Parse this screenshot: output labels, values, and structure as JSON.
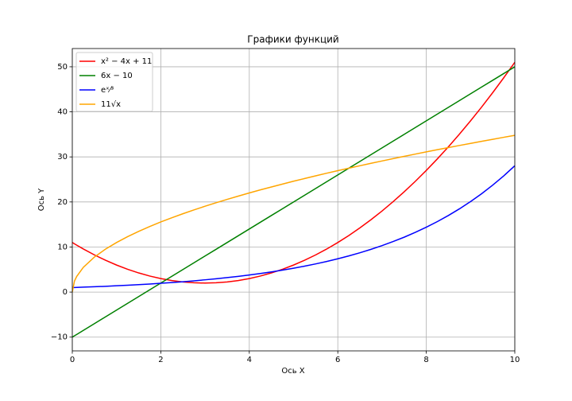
{
  "chart_data": {
    "type": "line",
    "title": "Графики функций",
    "x_label": "Ось X",
    "y_label": "Ось Y",
    "x": [
      0,
      0.05,
      0.1,
      0.25,
      0.5,
      0.75,
      1,
      1.25,
      1.5,
      1.75,
      2,
      2.25,
      2.5,
      2.75,
      3,
      3.25,
      3.5,
      3.75,
      4,
      4.25,
      4.5,
      4.75,
      5,
      5.25,
      5.5,
      5.75,
      6,
      6.25,
      6.5,
      6.75,
      7,
      7.25,
      7.5,
      7.75,
      8,
      8.25,
      8.5,
      8.75,
      9,
      9.25,
      9.5,
      9.75,
      10
    ],
    "series": [
      {
        "name": "x² − 4x + 11",
        "color": "#ff0000",
        "values": [
          11,
          10.7,
          10.41,
          9.56,
          8.25,
          7.06,
          6,
          5.06,
          4.25,
          3.56,
          3,
          2.56,
          2.25,
          2.06,
          2,
          2.06,
          2.25,
          2.56,
          3,
          3.56,
          4.25,
          5.06,
          6,
          7.06,
          8.25,
          9.56,
          11,
          12.56,
          14.25,
          16.06,
          18,
          20.06,
          22.25,
          24.56,
          27,
          29.56,
          32.25,
          35.06,
          38,
          41.06,
          44.25,
          47.56,
          51
        ]
      },
      {
        "name": "6x − 10",
        "color": "#008000",
        "values": [
          -10,
          -9.7,
          -9.4,
          -8.5,
          -7,
          -5.5,
          -4,
          -2.5,
          -1,
          0.5,
          2,
          3.5,
          5,
          6.5,
          8,
          9.5,
          11,
          12.5,
          14,
          15.5,
          17,
          18.5,
          20,
          21.5,
          23,
          24.5,
          26,
          27.5,
          29,
          30.5,
          32,
          33.5,
          35,
          36.5,
          38,
          39.5,
          41,
          42.5,
          44,
          45.5,
          47,
          48.5,
          50
        ]
      },
      {
        "name": "eˣ⁄³",
        "color": "#0000ff",
        "values": [
          1,
          1.02,
          1.03,
          1.09,
          1.18,
          1.28,
          1.4,
          1.52,
          1.65,
          1.79,
          1.95,
          2.12,
          2.3,
          2.5,
          2.72,
          2.95,
          3.21,
          3.49,
          3.79,
          4.12,
          4.48,
          4.87,
          5.29,
          5.75,
          6.25,
          6.8,
          7.39,
          8.03,
          8.73,
          9.49,
          10.31,
          11.21,
          12.18,
          13.24,
          14.39,
          15.64,
          17.0,
          18.48,
          20.09,
          21.83,
          23.73,
          25.79,
          28.03
        ]
      },
      {
        "name": "11√x",
        "color": "#ffa500",
        "values": [
          0,
          2.46,
          3.48,
          5.5,
          7.78,
          9.53,
          11,
          12.3,
          13.47,
          14.55,
          15.56,
          16.5,
          17.39,
          18.24,
          19.05,
          19.83,
          20.58,
          21.3,
          22,
          22.68,
          23.33,
          23.97,
          24.6,
          25.2,
          25.8,
          26.38,
          26.94,
          27.5,
          28.04,
          28.58,
          29.1,
          29.62,
          30.12,
          30.62,
          31.11,
          31.6,
          32.07,
          32.54,
          33,
          33.46,
          33.9,
          34.35,
          34.79
        ]
      }
    ],
    "xlim": [
      0,
      10
    ],
    "xticks": [
      0,
      2,
      4,
      6,
      8,
      10
    ],
    "ylim": [
      -13.05,
      54.05
    ],
    "yticks": [
      {
        "value": -10,
        "label": "−10"
      },
      0,
      10,
      20,
      30,
      40,
      50
    ],
    "grid": true,
    "legend": "upper left"
  }
}
